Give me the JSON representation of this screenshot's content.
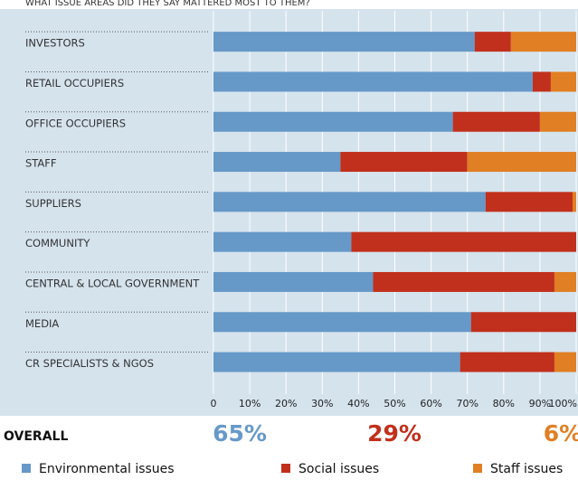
{
  "chart_data": {
    "type": "stacked-bar-horizontal",
    "subtitle": "WHAT ISSUE AREAS DID THEY SAY MATTERED MOST TO THEM?",
    "categories": [
      "INVESTORS",
      "RETAIL OCCUPIERS",
      "OFFICE OCCUPIERS",
      "STAFF",
      "SUPPLIERS",
      "COMMUNITY",
      "CENTRAL & LOCAL GOVERNMENT",
      "MEDIA",
      "CR SPECIALISTS & NGOS"
    ],
    "series": [
      {
        "name": "Environmental issues",
        "color": "#6699c8",
        "values": [
          72,
          88,
          66,
          35,
          75,
          38,
          44,
          71,
          68
        ]
      },
      {
        "name": "Social issues",
        "color": "#c1301c",
        "values": [
          10,
          5,
          24,
          35,
          24,
          62,
          50,
          29,
          26
        ]
      },
      {
        "name": "Staff issues",
        "color": "#e07f23",
        "values": [
          18,
          7,
          10,
          30,
          1,
          0,
          6,
          0,
          6
        ]
      }
    ],
    "xlim": [
      0,
      100
    ],
    "xticks": [
      0,
      {
        "value": 10,
        "label": "10%"
      },
      {
        "value": 20,
        "label": "20%"
      },
      {
        "value": 30,
        "label": "30%"
      },
      {
        "value": 40,
        "label": "40%"
      },
      {
        "value": 50,
        "label": "50%"
      },
      {
        "value": 60,
        "label": "60%"
      },
      {
        "value": 70,
        "label": "70%"
      },
      {
        "value": 80,
        "label": "80%"
      },
      {
        "value": 90,
        "label": "90%"
      },
      {
        "value": 100,
        "label": "100%"
      }
    ],
    "grid": true,
    "overall": {
      "label": "OVERALL",
      "values": [
        65,
        29,
        6
      ],
      "value_labels": [
        "65%",
        "29%",
        "6%"
      ]
    }
  }
}
